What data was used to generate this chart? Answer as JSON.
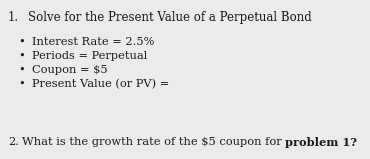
{
  "background_color": "#ebebeb",
  "text_color": "#1a1a1a",
  "num1": "1.",
  "title_text": "Solve for the Present Value of a Perpetual Bond",
  "bullets": [
    "Interest Rate = 2.5%",
    "Periods = Perpetual",
    "Coupon = $5",
    "Present Value (or PV) ="
  ],
  "num2": "2.",
  "footer_normal": "What is the growth rate of the $5 coupon for ",
  "footer_bold": "problem 1?",
  "title_fontsize": 8.5,
  "bullet_fontsize": 8.2,
  "footer_fontsize": 8.2,
  "figwidth": 3.7,
  "figheight": 1.59,
  "dpi": 100
}
